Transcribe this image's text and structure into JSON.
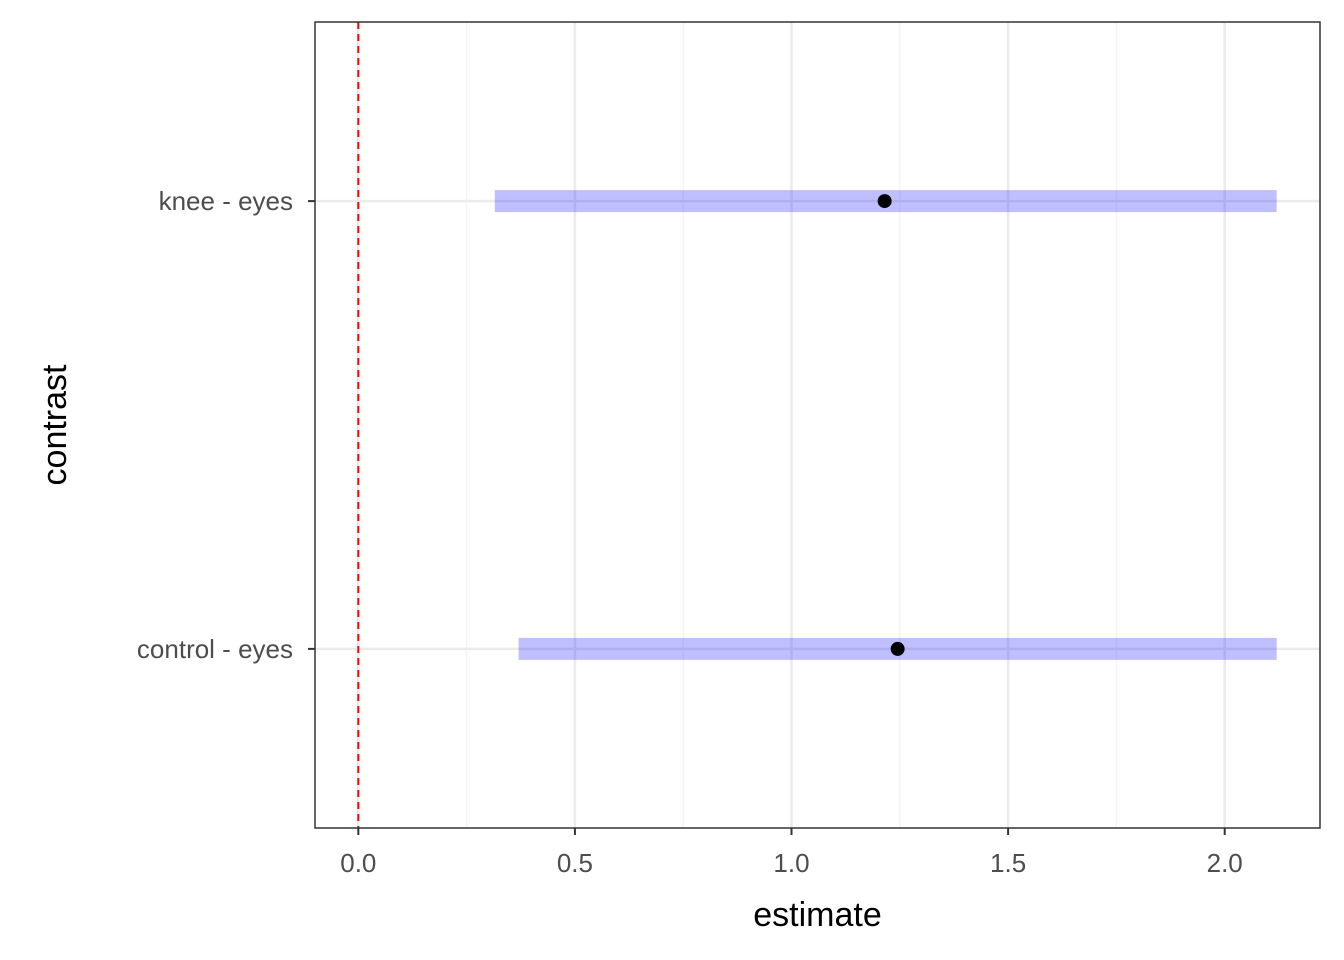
{
  "chart_data": {
    "type": "interval",
    "xlabel": "estimate",
    "ylabel": "contrast",
    "xlim": [
      -0.1,
      2.22
    ],
    "x_ticks": [
      0.0,
      0.5,
      1.0,
      1.5,
      2.0
    ],
    "x_tick_labels": [
      "0.0",
      "0.5",
      "1.0",
      "1.5",
      "2.0"
    ],
    "x_minor_ticks": [
      0.25,
      0.75,
      1.25,
      1.75
    ],
    "categories": [
      "control - eyes",
      "knee - eyes"
    ],
    "estimates": [
      1.245,
      1.215
    ],
    "lower": [
      0.37,
      0.315
    ],
    "upper": [
      2.12,
      2.12
    ],
    "reference_line": 0.0,
    "grid": true,
    "colors": {
      "interval": "#0000ff",
      "interval_opacity": 0.25,
      "point": "#000000",
      "reference_line": "#ff0000",
      "grid_major": "#ebebeb",
      "grid_minor": "#f4f4f4",
      "panel_border": "#333333"
    }
  }
}
